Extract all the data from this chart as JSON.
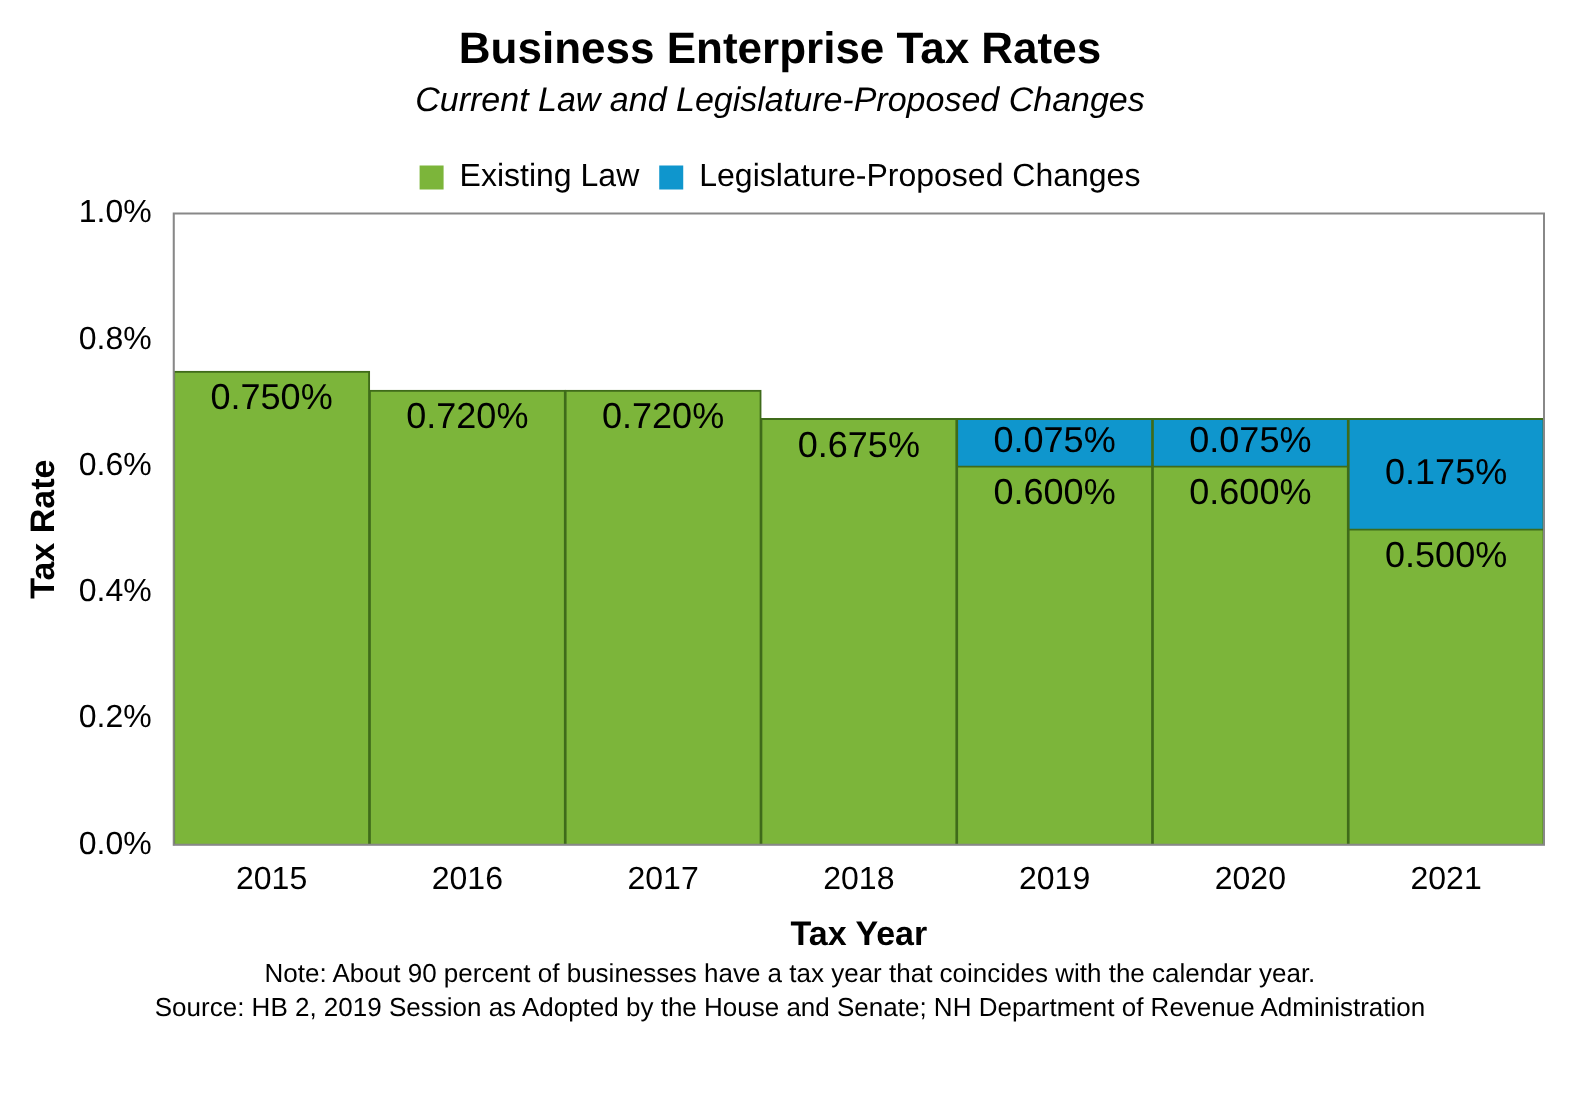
{
  "chart_data": {
    "type": "bar",
    "title": "Business Enterprise Tax Rates",
    "subtitle": "Current Law and Legislature-Proposed Changes",
    "xlabel": "Tax Year",
    "ylabel": "Tax Rate",
    "categories": [
      "2015",
      "2016",
      "2017",
      "2018",
      "2019",
      "2020",
      "2021"
    ],
    "stacked": true,
    "series": [
      {
        "name": "Existing Law",
        "color": "#7cb53a",
        "values": [
          0.75,
          0.72,
          0.72,
          0.675,
          0.6,
          0.6,
          0.5
        ],
        "value_labels": [
          "0.750%",
          "0.720%",
          "0.720%",
          "0.675%",
          "0.600%",
          "0.600%",
          "0.500%"
        ]
      },
      {
        "name": "Legislature-Proposed Changes",
        "color": "#0f96cd",
        "values": [
          null,
          null,
          null,
          null,
          0.075,
          0.075,
          0.175
        ],
        "value_labels": [
          null,
          null,
          null,
          null,
          "0.075%",
          "0.075%",
          "0.175%"
        ]
      }
    ],
    "ylim": [
      0,
      1.0
    ],
    "yticks": [
      {
        "value": 0,
        "label": "0.0%"
      },
      {
        "value": 0.2,
        "label": "0.2%"
      },
      {
        "value": 0.4,
        "label": "0.4%"
      },
      {
        "value": 0.6,
        "label": "0.6%"
      },
      {
        "value": 0.8,
        "label": "0.8%"
      },
      {
        "value": 1.0,
        "label": "1.0%"
      }
    ],
    "grid": false,
    "legend": "top",
    "annotations": [
      "Note: About 90 percent of businesses have a tax year that coincides with the calendar year.",
      "Source: HB 2, 2019 Session as Adopted by the House and Senate; NH Department of Revenue Administration"
    ]
  }
}
